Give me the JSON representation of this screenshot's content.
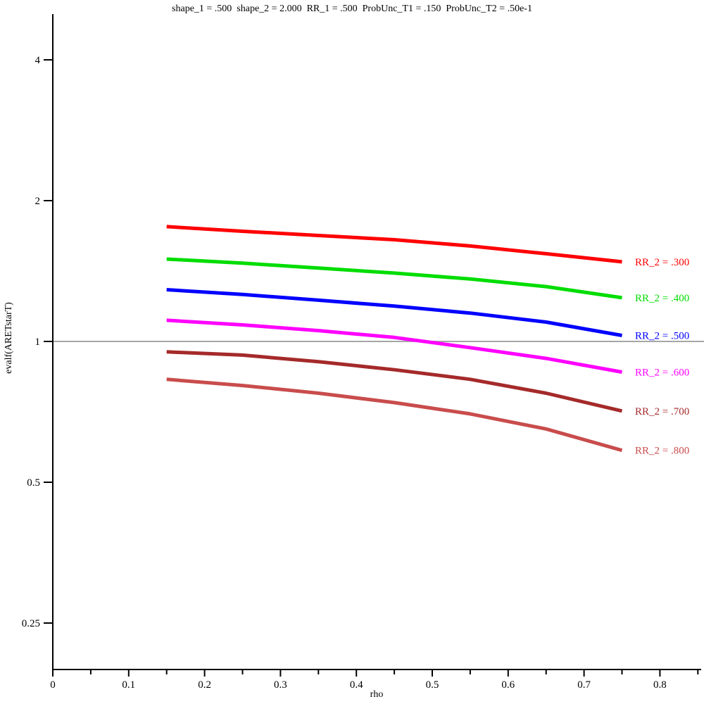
{
  "title": "shape_1 = .500  shape_2 = 2.000  RR_1 = .500  ProbUnc_T1 = .150  ProbUnc_T2 = .50e-1",
  "chart_data": {
    "type": "line",
    "title": "shape_1 = .500  shape_2 = 2.000  RR_1 = .500  ProbUnc_T1 = .150  ProbUnc_T2 = .50e-1",
    "xlabel": "rho",
    "ylabel": "evalf(ARETstarT)",
    "x": [
      0.15,
      0.25,
      0.35,
      0.45,
      0.55,
      0.65,
      0.75
    ],
    "series": [
      {
        "name": "RR_2 = .300",
        "color": "#ff0000",
        "values": [
          1.76,
          1.72,
          1.685,
          1.65,
          1.6,
          1.54,
          1.48
        ]
      },
      {
        "name": "RR_2 = .400",
        "color": "#00dd00",
        "values": [
          1.5,
          1.47,
          1.435,
          1.4,
          1.36,
          1.31,
          1.24
        ]
      },
      {
        "name": "RR_2 = .500",
        "color": "#0000ff",
        "values": [
          1.29,
          1.26,
          1.225,
          1.19,
          1.15,
          1.1,
          1.03
        ]
      },
      {
        "name": "RR_2 = .600",
        "color": "#ff00ff",
        "values": [
          1.11,
          1.085,
          1.055,
          1.02,
          0.97,
          0.92,
          0.86
        ]
      },
      {
        "name": "RR_2 = .700",
        "color": "#a52a2a",
        "values": [
          0.95,
          0.935,
          0.905,
          0.87,
          0.83,
          0.775,
          0.71
        ]
      },
      {
        "name": "RR_2 = .800",
        "color": "#c94c4c",
        "values": [
          0.83,
          0.805,
          0.775,
          0.74,
          0.7,
          0.65,
          0.585
        ]
      }
    ],
    "x_tick_labels": [
      "0",
      "0.1",
      "0.2",
      "0.3",
      "0.4",
      "0.5",
      "0.6",
      "0.7",
      "0.8"
    ],
    "x_major_ticks": [
      0,
      0.1,
      0.2,
      0.3,
      0.4,
      0.5,
      0.6,
      0.7,
      0.8
    ],
    "x_minor_ticks": [
      0.05,
      0.15,
      0.25,
      0.35,
      0.45,
      0.55,
      0.65,
      0.75,
      0.85
    ],
    "y_ticks": [
      4,
      2,
      1,
      0.5,
      0.25
    ],
    "y_tick_labels": [
      "4",
      "2",
      "1",
      "0.5",
      "0.25"
    ],
    "y_scale": "log2",
    "xlim": [
      0,
      0.855
    ],
    "ylim": [
      0.2,
      5.0
    ],
    "grid": false,
    "reference_line_y": 1,
    "reference_line_color": "#a6a6a6",
    "axis_color": "#000000",
    "legend_position": "right-of-curve-ends",
    "line_width": 5
  }
}
